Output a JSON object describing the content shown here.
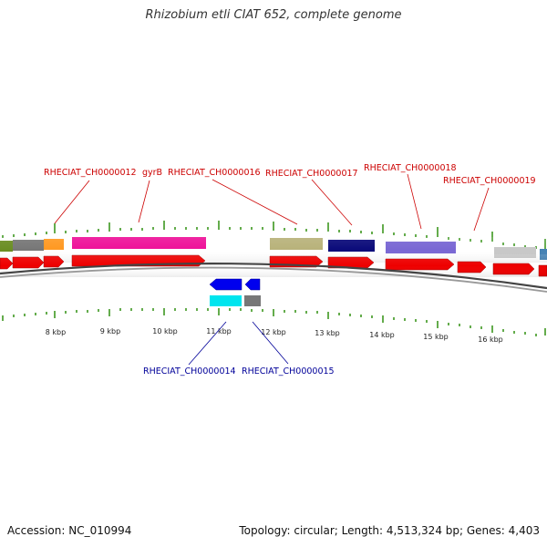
{
  "title": "Rhizobium etli CIAT 652, complete genome",
  "footer": {
    "accession": "Accession: NC_010994",
    "summary": "Topology: circular; Length: 4,513,324 bp; Genes: 4,403"
  },
  "upper_labels": [
    "RHECIAT_CH0000012",
    "gyrB",
    "RHECIAT_CH0000016",
    "RHECIAT_CH0000017",
    "RHECIAT_CH0000018",
    "RHECIAT_CH0000019"
  ],
  "lower_labels": [
    "RHECIAT_CH0000014",
    "RHECIAT_CH0000015"
  ],
  "kbp_ticks": [
    "8 kbp",
    "9 kbp",
    "10 kbp",
    "11 kbp",
    "12 kbp",
    "13 kbp",
    "14 kbp",
    "15 kbp",
    "16 kbp"
  ],
  "colors": {
    "upper_label": "#cc0000",
    "lower_label": "#000099",
    "forward_cds": "#ee0000",
    "reverse_cds": "#0000ee",
    "tick": "#228800",
    "backbone": "#666666"
  }
}
